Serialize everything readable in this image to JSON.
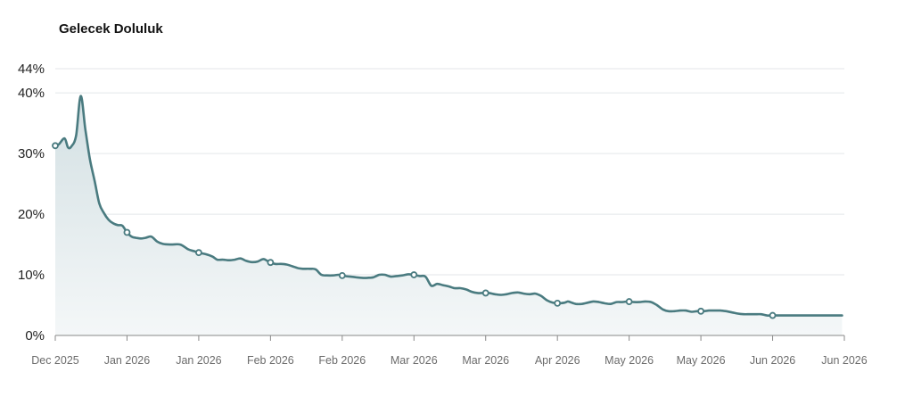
{
  "chart_data": {
    "type": "area",
    "title": "Gelecek Doluluk",
    "xlabel": "",
    "ylabel": "",
    "ylim": [
      0,
      44
    ],
    "y_ticks": [
      "0%",
      "10%",
      "20%",
      "30%",
      "40%",
      "44%"
    ],
    "y_tick_values": [
      0,
      10,
      20,
      30,
      40,
      44
    ],
    "x_ticks": [
      "Dec 2025",
      "Jan 2026",
      "Jan 2026",
      "Feb 2026",
      "Feb 2026",
      "Mar 2026",
      "Mar 2026",
      "Apr 2026",
      "May 2026",
      "May 2026",
      "Jun 2026",
      "Jun 2026"
    ],
    "grid": true,
    "legend": "none",
    "colors": {
      "line": "#4a7b80",
      "fill_top": "#d3e0e3",
      "fill_bottom": "#f4f7f8",
      "grid": "#e3e6ea",
      "axis": "#888888"
    },
    "series": [
      {
        "name": "Gelecek Doluluk",
        "t": [
          0,
          0.3,
          0.8,
          1.1,
          1.4,
          1.8,
          2.2,
          2.6,
          3.0,
          3.4,
          3.8,
          4.2,
          4.6,
          5.0,
          5.4,
          5.8,
          6.2,
          6.6,
          7.0,
          7.4,
          7.8,
          8.3,
          8.8,
          9.3,
          10,
          10.8,
          11.5,
          12.0,
          12.5,
          13.0,
          13.6,
          14.0,
          14.5,
          15.0,
          15.5,
          16.0,
          16.5,
          17.0,
          17.5,
          18.0,
          18.5,
          19.0,
          19.5,
          20.0,
          20.5,
          21.0,
          21.4,
          22.0,
          22.5,
          23.0,
          23.5,
          24.0,
          24.5,
          25.0,
          25.5,
          26.0,
          26.5,
          27.0,
          27.5,
          28.0,
          28.5,
          29.0,
          29.5,
          30.0,
          30.5,
          31.0,
          31.5,
          32.0,
          32.5,
          33.0,
          33.5,
          34.0,
          34.5,
          35.0,
          35.5,
          36.0,
          36.5,
          37.0,
          37.5,
          38.0,
          38.5,
          39.0,
          39.5,
          40.0,
          40.5,
          41.0,
          41.5,
          42.0,
          42.5,
          43.0,
          43.5,
          44.0,
          44.3
        ],
        "values": [
          31.3,
          31.5,
          32.5,
          31.0,
          31.2,
          33.0,
          39.5,
          34.0,
          29.0,
          25.5,
          21.8,
          20.2,
          19.1,
          18.5,
          18.2,
          18.1,
          17.0,
          16.3,
          16.1,
          16.0,
          16.1,
          16.3,
          15.5,
          15.1,
          15.0,
          15.0,
          14.2,
          13.9,
          13.6,
          13.4,
          13.0,
          12.5,
          12.5,
          12.4,
          12.5,
          12.7,
          12.3,
          12.1,
          12.2,
          12.6,
          12.1,
          11.8,
          11.8,
          11.7,
          11.4,
          11.1,
          11.0,
          11.0,
          10.9,
          10.0,
          9.9,
          9.9,
          10.0,
          9.8,
          9.7,
          9.6,
          9.5,
          9.5,
          9.6,
          10.0,
          10.0,
          9.7,
          9.8,
          9.9,
          10.1,
          10.0,
          9.8,
          9.7,
          8.2,
          8.5,
          8.3,
          8.1,
          7.8,
          7.8,
          7.6,
          7.2,
          7.0,
          7.0,
          7.0,
          6.8,
          6.7,
          6.8,
          7.0,
          7.1,
          6.9,
          6.8,
          6.9,
          6.5,
          5.8,
          5.4,
          5.3,
          5.4,
          5.6
        ]
      }
    ],
    "tail": {
      "t": [
        44.5,
        45.0,
        45.5,
        46.0,
        46.5,
        47.0,
        47.5,
        48.0,
        48.5,
        49.0,
        49.5,
        50.0,
        50.5,
        51.0,
        51.5,
        52.0,
        52.5,
        53.0,
        53.5,
        54.0,
        54.5,
        55.0,
        55.5,
        56.0,
        56.5,
        57.0,
        57.5,
        58.0,
        58.5,
        59.0,
        59.5,
        60.0,
        60.5,
        61.0,
        61.5,
        62.0,
        62.5,
        63.0,
        63.5,
        64.0,
        64.5,
        65.0,
        65.5,
        66.0,
        66.5,
        67.0,
        67.5,
        68.0
      ],
      "values": [
        5.5,
        5.2,
        5.2,
        5.4,
        5.6,
        5.5,
        5.3,
        5.2,
        5.5,
        5.5,
        5.6,
        5.5,
        5.5,
        5.6,
        5.5,
        5.0,
        4.3,
        4.0,
        4.0,
        4.1,
        4.1,
        3.9,
        4.0,
        4.0,
        4.1,
        4.1,
        4.1,
        4.0,
        3.8,
        3.6,
        3.5,
        3.5,
        3.5,
        3.5,
        3.3,
        3.3,
        3.3,
        3.3,
        3.3,
        3.3,
        3.3,
        3.3,
        3.3,
        3.3,
        3.3,
        3.3,
        3.3,
        3.3
      ]
    },
    "marker_t": [
      0,
      6.2,
      12.4,
      18.6,
      24.8,
      31.0,
      37.2,
      43.4,
      49.6,
      55.8,
      62.0,
      68.2
    ]
  }
}
